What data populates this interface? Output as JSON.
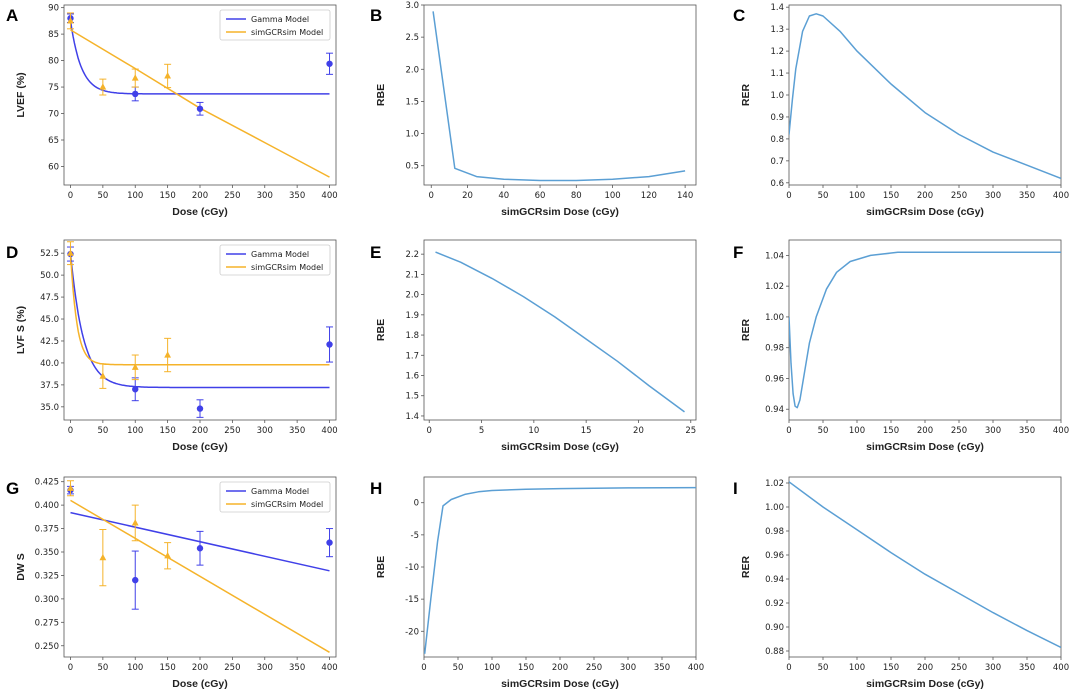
{
  "colors": {
    "gamma": "#4040e8",
    "sim": "#f5b32a",
    "rbe_rer": "#5b9fd4",
    "axis": "#555555"
  },
  "chart_data": [
    {
      "panel": "A",
      "type": "line",
      "xlabel": "Dose  (cGy)",
      "ylabel": "LVEF (%)",
      "xlim": [
        -10,
        410
      ],
      "ylim": [
        56.5,
        90.5
      ],
      "xticks": [
        0,
        50,
        100,
        150,
        200,
        250,
        300,
        350,
        400
      ],
      "yticks": [
        60,
        65,
        70,
        75,
        80,
        85,
        90
      ],
      "legend": [
        "Gamma Model",
        "simGCRsim Model"
      ],
      "series": [
        {
          "name": "Gamma Model",
          "kind": "exp",
          "y0": 87.5,
          "yinf": 73.7,
          "k": 0.06,
          "xmax": 400
        },
        {
          "name": "simGCRsim Model",
          "kind": "poly",
          "points": [
            [
              0,
              85.8
            ],
            [
              100,
              78.5
            ],
            [
              200,
              71.0
            ],
            [
              300,
              64.5
            ],
            [
              400,
              58.0
            ]
          ]
        }
      ],
      "points": [
        {
          "series": "Gamma Model",
          "x": 0,
          "y": 88.0,
          "err": 0.8
        },
        {
          "series": "Gamma Model",
          "x": 100,
          "y": 73.7,
          "err": 1.3
        },
        {
          "series": "Gamma Model",
          "x": 200,
          "y": 70.9,
          "err": 1.2
        },
        {
          "series": "Gamma Model",
          "x": 400,
          "y": 79.4,
          "err": 2.0
        },
        {
          "series": "simGCRsim Model",
          "x": 0,
          "y": 87.5,
          "err": 1.5
        },
        {
          "series": "simGCRsim Model",
          "x": 50,
          "y": 75.0,
          "err": 1.5
        },
        {
          "series": "simGCRsim Model",
          "x": 100,
          "y": 76.7,
          "err": 1.7
        },
        {
          "series": "simGCRsim Model",
          "x": 150,
          "y": 77.1,
          "err": 2.2
        }
      ]
    },
    {
      "panel": "B",
      "type": "line",
      "xlabel": "simGCRsim  Dose (cGy)",
      "ylabel": "RBE",
      "xlim": [
        -4,
        146
      ],
      "ylim": [
        0.2,
        3.0
      ],
      "xticks": [
        0,
        20,
        40,
        60,
        80,
        100,
        120,
        140
      ],
      "yticks": [
        0.5,
        1.0,
        1.5,
        2.0,
        2.5,
        3.0
      ],
      "series": [
        {
          "name": "RBE",
          "kind": "poly",
          "points": [
            [
              1,
              2.9
            ],
            [
              13,
              0.46
            ],
            [
              25,
              0.33
            ],
            [
              40,
              0.29
            ],
            [
              60,
              0.27
            ],
            [
              80,
              0.27
            ],
            [
              100,
              0.29
            ],
            [
              120,
              0.33
            ],
            [
              140,
              0.42
            ]
          ]
        }
      ]
    },
    {
      "panel": "C",
      "type": "line",
      "xlabel": "simGCRsim  Dose (cGy)",
      "ylabel": "RER",
      "xlim": [
        0,
        400
      ],
      "ylim": [
        0.59,
        1.41
      ],
      "xticks": [
        0,
        50,
        100,
        150,
        200,
        250,
        300,
        350,
        400
      ],
      "yticks": [
        0.6,
        0.7,
        0.8,
        0.9,
        1.0,
        1.1,
        1.2,
        1.3,
        1.4
      ],
      "series": [
        {
          "name": "RER",
          "kind": "poly",
          "points": [
            [
              0,
              0.82
            ],
            [
              5,
              0.98
            ],
            [
              10,
              1.12
            ],
            [
              20,
              1.29
            ],
            [
              30,
              1.36
            ],
            [
              40,
              1.37
            ],
            [
              50,
              1.36
            ],
            [
              75,
              1.29
            ],
            [
              100,
              1.2
            ],
            [
              150,
              1.05
            ],
            [
              200,
              0.92
            ],
            [
              250,
              0.82
            ],
            [
              300,
              0.74
            ],
            [
              350,
              0.68
            ],
            [
              400,
              0.62
            ]
          ]
        }
      ]
    },
    {
      "panel": "D",
      "type": "line",
      "xlabel": "Dose  (cGy)",
      "ylabel": "LVF S (%)",
      "xlim": [
        -10,
        410
      ],
      "ylim": [
        33.5,
        54.0
      ],
      "xticks": [
        0,
        50,
        100,
        150,
        200,
        250,
        300,
        350,
        400
      ],
      "yticks": [
        35.0,
        37.5,
        40.0,
        42.5,
        45.0,
        47.5,
        50.0,
        52.5
      ],
      "legend": [
        "Gamma Model",
        "simGCRsim Model"
      ],
      "series": [
        {
          "name": "Gamma Model",
          "kind": "exp",
          "y0": 52.5,
          "yinf": 37.2,
          "k": 0.05,
          "xmax": 400
        },
        {
          "name": "simGCRsim Model",
          "kind": "exp",
          "y0": 52.5,
          "yinf": 39.8,
          "k": 0.1,
          "xmax": 400
        }
      ],
      "points": [
        {
          "series": "Gamma Model",
          "x": 0,
          "y": 52.4,
          "err": 0.8
        },
        {
          "series": "Gamma Model",
          "x": 100,
          "y": 37.0,
          "err": 1.3
        },
        {
          "series": "Gamma Model",
          "x": 200,
          "y": 34.8,
          "err": 1.0
        },
        {
          "series": "Gamma Model",
          "x": 400,
          "y": 42.1,
          "err": 2.0
        },
        {
          "series": "simGCRsim Model",
          "x": 0,
          "y": 52.5,
          "err": 1.3
        },
        {
          "series": "simGCRsim Model",
          "x": 50,
          "y": 38.5,
          "err": 1.4
        },
        {
          "series": "simGCRsim Model",
          "x": 100,
          "y": 39.5,
          "err": 1.4
        },
        {
          "series": "simGCRsim Model",
          "x": 150,
          "y": 40.9,
          "err": 1.9
        }
      ]
    },
    {
      "panel": "E",
      "type": "line",
      "xlabel": "simGCRsim  Dose (cGy)",
      "ylabel": "RBE",
      "xlim": [
        -0.5,
        25.5
      ],
      "ylim": [
        1.38,
        2.27
      ],
      "xticks": [
        0,
        5,
        10,
        15,
        20,
        25
      ],
      "yticks": [
        1.4,
        1.5,
        1.6,
        1.7,
        1.8,
        1.9,
        2.0,
        2.1,
        2.2
      ],
      "series": [
        {
          "name": "RBE",
          "kind": "poly",
          "points": [
            [
              0.6,
              2.21
            ],
            [
              3,
              2.16
            ],
            [
              6,
              2.08
            ],
            [
              9,
              1.99
            ],
            [
              12,
              1.89
            ],
            [
              15,
              1.78
            ],
            [
              18,
              1.67
            ],
            [
              21,
              1.55
            ],
            [
              24.4,
              1.42
            ]
          ]
        }
      ]
    },
    {
      "panel": "F",
      "type": "line",
      "xlabel": "simGCRsim  Dose (cGy)",
      "ylabel": "RER",
      "xlim": [
        0,
        400
      ],
      "ylim": [
        0.933,
        1.05
      ],
      "xticks": [
        0,
        50,
        100,
        150,
        200,
        250,
        300,
        350,
        400
      ],
      "yticks": [
        0.94,
        0.96,
        0.98,
        1.0,
        1.02,
        1.04
      ],
      "series": [
        {
          "name": "RER",
          "kind": "poly",
          "points": [
            [
              0,
              1.0
            ],
            [
              3,
              0.97
            ],
            [
              6,
              0.95
            ],
            [
              9,
              0.942
            ],
            [
              12,
              0.941
            ],
            [
              16,
              0.946
            ],
            [
              22,
              0.962
            ],
            [
              30,
              0.983
            ],
            [
              40,
              1.0
            ],
            [
              55,
              1.018
            ],
            [
              70,
              1.029
            ],
            [
              90,
              1.036
            ],
            [
              120,
              1.04
            ],
            [
              160,
              1.042
            ],
            [
              200,
              1.042
            ],
            [
              300,
              1.042
            ],
            [
              400,
              1.042
            ]
          ]
        }
      ]
    },
    {
      "panel": "G",
      "type": "line",
      "xlabel": "Dose  (cGy)",
      "ylabel": "DW S",
      "xlim": [
        -10,
        410
      ],
      "ylim": [
        0.238,
        0.43
      ],
      "xticks": [
        0,
        50,
        100,
        150,
        200,
        250,
        300,
        350,
        400
      ],
      "yticks": [
        0.25,
        0.275,
        0.3,
        0.325,
        0.35,
        0.375,
        0.4,
        0.425
      ],
      "legend": [
        "Gamma Model",
        "simGCRsim Model"
      ],
      "series": [
        {
          "name": "Gamma Model",
          "kind": "poly",
          "points": [
            [
              0,
              0.392
            ],
            [
              400,
              0.33
            ]
          ]
        },
        {
          "name": "simGCRsim Model",
          "kind": "poly",
          "points": [
            [
              0,
              0.405
            ],
            [
              400,
              0.243
            ]
          ]
        }
      ],
      "points": [
        {
          "series": "Gamma Model",
          "x": 0,
          "y": 0.416,
          "err": 0.004
        },
        {
          "series": "Gamma Model",
          "x": 100,
          "y": 0.32,
          "err": 0.031
        },
        {
          "series": "Gamma Model",
          "x": 200,
          "y": 0.354,
          "err": 0.018
        },
        {
          "series": "Gamma Model",
          "x": 400,
          "y": 0.36,
          "err": 0.015
        },
        {
          "series": "simGCRsim Model",
          "x": 0,
          "y": 0.418,
          "err": 0.008
        },
        {
          "series": "simGCRsim Model",
          "x": 50,
          "y": 0.344,
          "err": 0.03
        },
        {
          "series": "simGCRsim Model",
          "x": 100,
          "y": 0.381,
          "err": 0.019
        },
        {
          "series": "simGCRsim Model",
          "x": 150,
          "y": 0.346,
          "err": 0.014
        }
      ]
    },
    {
      "panel": "H",
      "type": "line",
      "xlabel": "simGCRsim  Dose (cGy)",
      "ylabel": "RBE",
      "xlim": [
        0,
        400
      ],
      "ylim": [
        -24,
        4
      ],
      "xticks": [
        0,
        50,
        100,
        150,
        200,
        250,
        300,
        350,
        400
      ],
      "yticks": [
        -20,
        -15,
        -10,
        -5,
        0
      ],
      "series": [
        {
          "name": "RBE",
          "kind": "poly",
          "points": [
            [
              1,
              -23.5
            ],
            [
              10,
              -15
            ],
            [
              20,
              -6
            ],
            [
              28,
              -0.5
            ],
            [
              40,
              0.5
            ],
            [
              60,
              1.3
            ],
            [
              80,
              1.7
            ],
            [
              100,
              1.9
            ],
            [
              150,
              2.1
            ],
            [
              200,
              2.2
            ],
            [
              300,
              2.3
            ],
            [
              400,
              2.35
            ]
          ]
        }
      ]
    },
    {
      "panel": "I",
      "type": "line",
      "xlabel": "simGCRsim  Dose (cGy)",
      "ylabel": "RER",
      "xlim": [
        0,
        400
      ],
      "ylim": [
        0.875,
        1.025
      ],
      "xticks": [
        0,
        50,
        100,
        150,
        200,
        250,
        300,
        350,
        400
      ],
      "yticks": [
        0.88,
        0.9,
        0.92,
        0.94,
        0.96,
        0.98,
        1.0,
        1.02
      ],
      "series": [
        {
          "name": "RER",
          "kind": "poly",
          "points": [
            [
              0,
              1.021
            ],
            [
              50,
              1.0
            ],
            [
              100,
              0.981
            ],
            [
              150,
              0.962
            ],
            [
              200,
              0.944
            ],
            [
              250,
              0.928
            ],
            [
              300,
              0.912
            ],
            [
              350,
              0.897
            ],
            [
              400,
              0.883
            ]
          ]
        }
      ]
    }
  ]
}
